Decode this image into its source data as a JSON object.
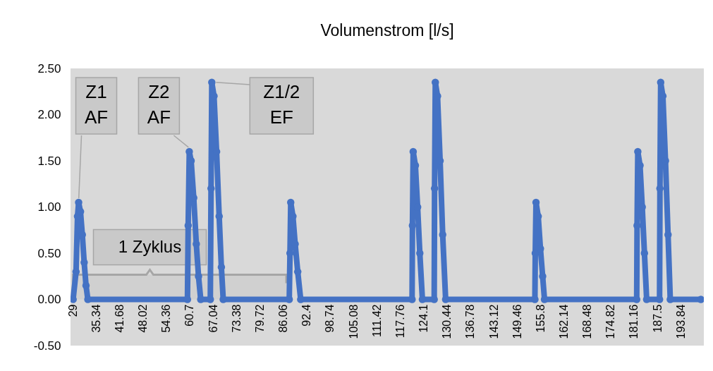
{
  "chart_data": {
    "type": "line",
    "title": "Volumenstrom [l/s]",
    "marker": "circle",
    "x": [
      29,
      29.8,
      30.2,
      30.5,
      31,
      31.5,
      32,
      32.5,
      33,
      60,
      60.2,
      60.5,
      61,
      61.7,
      62.4,
      63,
      63.6,
      66.2,
      66.4,
      66.6,
      67.2,
      67.9,
      68.6,
      69.2,
      69.7,
      87.6,
      87.8,
      88,
      88.6,
      89.2,
      89.9,
      90.7,
      120.9,
      121,
      121.2,
      121.8,
      122.4,
      123,
      123.7,
      126.9,
      127,
      127.2,
      127.8,
      128.5,
      129.2,
      130,
      154.2,
      154.3,
      154.5,
      155.1,
      155.7,
      156.3,
      156.8,
      181.8,
      181.9,
      182.1,
      182.7,
      183.3,
      183.9,
      184.5,
      188,
      188.1,
      188.3,
      188.9,
      189.6,
      190.3,
      190.9,
      199.2
    ],
    "series": [
      {
        "color": "#4472c4",
        "values": [
          0,
          0.3,
          0.9,
          1.05,
          0.95,
          0.7,
          0.4,
          0.15,
          0,
          0,
          0.8,
          1.6,
          1.5,
          1.1,
          0.6,
          0.25,
          0,
          0,
          1.2,
          2.35,
          2.2,
          1.6,
          0.9,
          0.35,
          0,
          0,
          0.5,
          1.05,
          0.9,
          0.6,
          0.3,
          0,
          0,
          0.8,
          1.6,
          1.45,
          1,
          0.5,
          0,
          0,
          1.2,
          2.35,
          2.2,
          1.5,
          0.7,
          0,
          0,
          0.5,
          1.05,
          0.9,
          0.55,
          0.25,
          0,
          0,
          0.8,
          1.6,
          1.45,
          1,
          0.5,
          0,
          0,
          1.2,
          2.35,
          2.2,
          1.5,
          0.7,
          0,
          0
        ]
      }
    ],
    "xlim": [
      28.3,
      200
    ],
    "xticks": [
      29,
      35.34,
      41.68,
      48.02,
      54.36,
      60.7,
      67.04,
      73.38,
      79.72,
      86.06,
      92.4,
      98.74,
      105.08,
      111.42,
      117.76,
      124.1,
      130.44,
      136.78,
      143.12,
      149.46,
      155.8,
      162.14,
      168.48,
      174.82,
      181.16,
      187.5,
      193.84
    ],
    "ylim": [
      -0.5,
      2.5
    ],
    "yticks": [
      {
        "value": -0.5,
        "label": "-0.50"
      },
      {
        "value": 0,
        "label": "0.00"
      },
      {
        "value": 0.5,
        "label": "0.50"
      },
      {
        "value": 1,
        "label": "1.00"
      },
      {
        "value": 1.5,
        "label": "1.50"
      },
      {
        "value": 2,
        "label": "2.00"
      },
      {
        "value": 2.5,
        "label": "2.50"
      }
    ],
    "annotations": [
      {
        "text": "Z1\nAF",
        "x": 30.5,
        "y": 1.05
      },
      {
        "text": "Z2\nAF",
        "x": 60.5,
        "y": 1.6
      },
      {
        "text": "Z1/2\nEF",
        "x": 66.6,
        "y": 2.35
      }
    ],
    "bands": [
      {
        "axis": "x",
        "from": 29,
        "to": 86.8,
        "label": "1 Zyklus",
        "color": "#a6a6a6"
      }
    ]
  }
}
